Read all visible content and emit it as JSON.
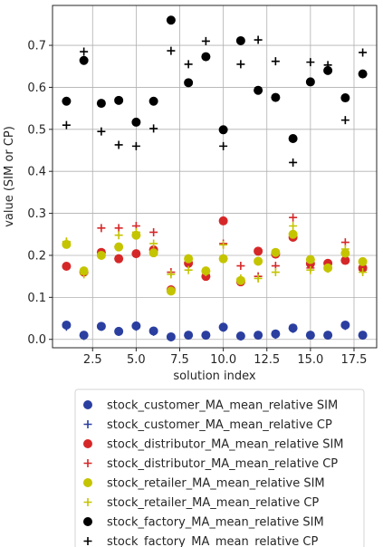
{
  "chart_data": {
    "type": "scatter",
    "title": "",
    "xlabel": "solution index",
    "ylabel": "value (SIM or CP)",
    "xlim": [
      0.2,
      18.8
    ],
    "ylim": [
      -0.02,
      0.795
    ],
    "xticks": [
      2.5,
      5.0,
      7.5,
      10.0,
      12.5,
      15.0,
      17.5
    ],
    "xtick_labels": [
      "2.5",
      "5.0",
      "7.5",
      "10.0",
      "12.5",
      "15.0",
      "17.5"
    ],
    "yticks": [
      0.0,
      0.1,
      0.2,
      0.3,
      0.4,
      0.5,
      0.6,
      0.7
    ],
    "ytick_labels": [
      "0.0",
      "0.1",
      "0.2",
      "0.3",
      "0.4",
      "0.5",
      "0.6",
      "0.7"
    ],
    "grid": true,
    "legend_position": "below plot",
    "x": [
      1,
      2,
      3,
      4,
      5,
      6,
      7,
      8,
      9,
      10,
      11,
      12,
      13,
      14,
      15,
      16,
      17,
      18
    ],
    "series": [
      {
        "name": "stock_customer_MA_mean_relative SIM",
        "marker": "circle",
        "color": "#2b3fa0",
        "values": [
          0.034,
          0.01,
          0.031,
          0.019,
          0.032,
          0.02,
          0.006,
          0.01,
          0.01,
          0.029,
          0.008,
          0.01,
          0.013,
          0.027,
          0.01,
          0.01,
          0.034,
          0.01
        ]
      },
      {
        "name": "stock_customer_MA_mean_relative CP",
        "marker": "plus",
        "color": "#2b3fa0",
        "values": [
          0.03,
          0.008,
          0.03,
          0.018,
          0.03,
          0.018,
          0.005,
          0.009,
          0.009,
          0.028,
          0.007,
          0.009,
          0.011,
          0.025,
          0.009,
          0.009,
          0.032,
          0.009
        ]
      },
      {
        "name": "stock_distributor_MA_mean_relative SIM",
        "marker": "circle",
        "color": "#d62728",
        "values": [
          0.174,
          0.16,
          0.207,
          0.192,
          0.204,
          0.213,
          0.118,
          0.181,
          0.15,
          0.282,
          0.137,
          0.21,
          0.203,
          0.243,
          0.18,
          0.181,
          0.188,
          0.17
        ]
      },
      {
        "name": "stock_distributor_MA_mean_relative CP",
        "marker": "plus",
        "color": "#d62728",
        "values": [
          0.23,
          0.158,
          0.265,
          0.265,
          0.27,
          0.255,
          0.16,
          0.183,
          0.15,
          0.228,
          0.175,
          0.15,
          0.175,
          0.29,
          0.17,
          0.172,
          0.231,
          0.165
        ]
      },
      {
        "name": "stock_retailer_MA_mean_relative SIM",
        "marker": "circle",
        "color": "#c4c400",
        "values": [
          0.226,
          0.163,
          0.2,
          0.22,
          0.248,
          0.206,
          0.115,
          0.192,
          0.163,
          0.192,
          0.14,
          0.186,
          0.207,
          0.25,
          0.19,
          0.17,
          0.205,
          0.185
        ]
      },
      {
        "name": "stock_retailer_MA_mean_relative CP",
        "marker": "plus",
        "color": "#c4c400",
        "values": [
          0.233,
          0.155,
          0.2,
          0.248,
          0.255,
          0.228,
          0.155,
          0.165,
          0.16,
          0.225,
          0.145,
          0.145,
          0.16,
          0.27,
          0.165,
          0.168,
          0.215,
          0.16
        ]
      },
      {
        "name": "stock_factory_MA_mean_relative SIM",
        "marker": "circle",
        "color": "#000000",
        "values": [
          0.567,
          0.664,
          0.562,
          0.569,
          0.517,
          0.567,
          0.76,
          0.611,
          0.673,
          0.499,
          0.711,
          0.593,
          0.576,
          0.478,
          0.613,
          0.64,
          0.575,
          0.632
        ]
      },
      {
        "name": "stock_factory_MA_mean_relative CP",
        "marker": "plus",
        "color": "#000000",
        "values": [
          0.51,
          0.685,
          0.495,
          0.463,
          0.46,
          0.502,
          0.687,
          0.655,
          0.71,
          0.46,
          0.655,
          0.713,
          0.662,
          0.421,
          0.66,
          0.653,
          0.522,
          0.683
        ]
      }
    ]
  }
}
